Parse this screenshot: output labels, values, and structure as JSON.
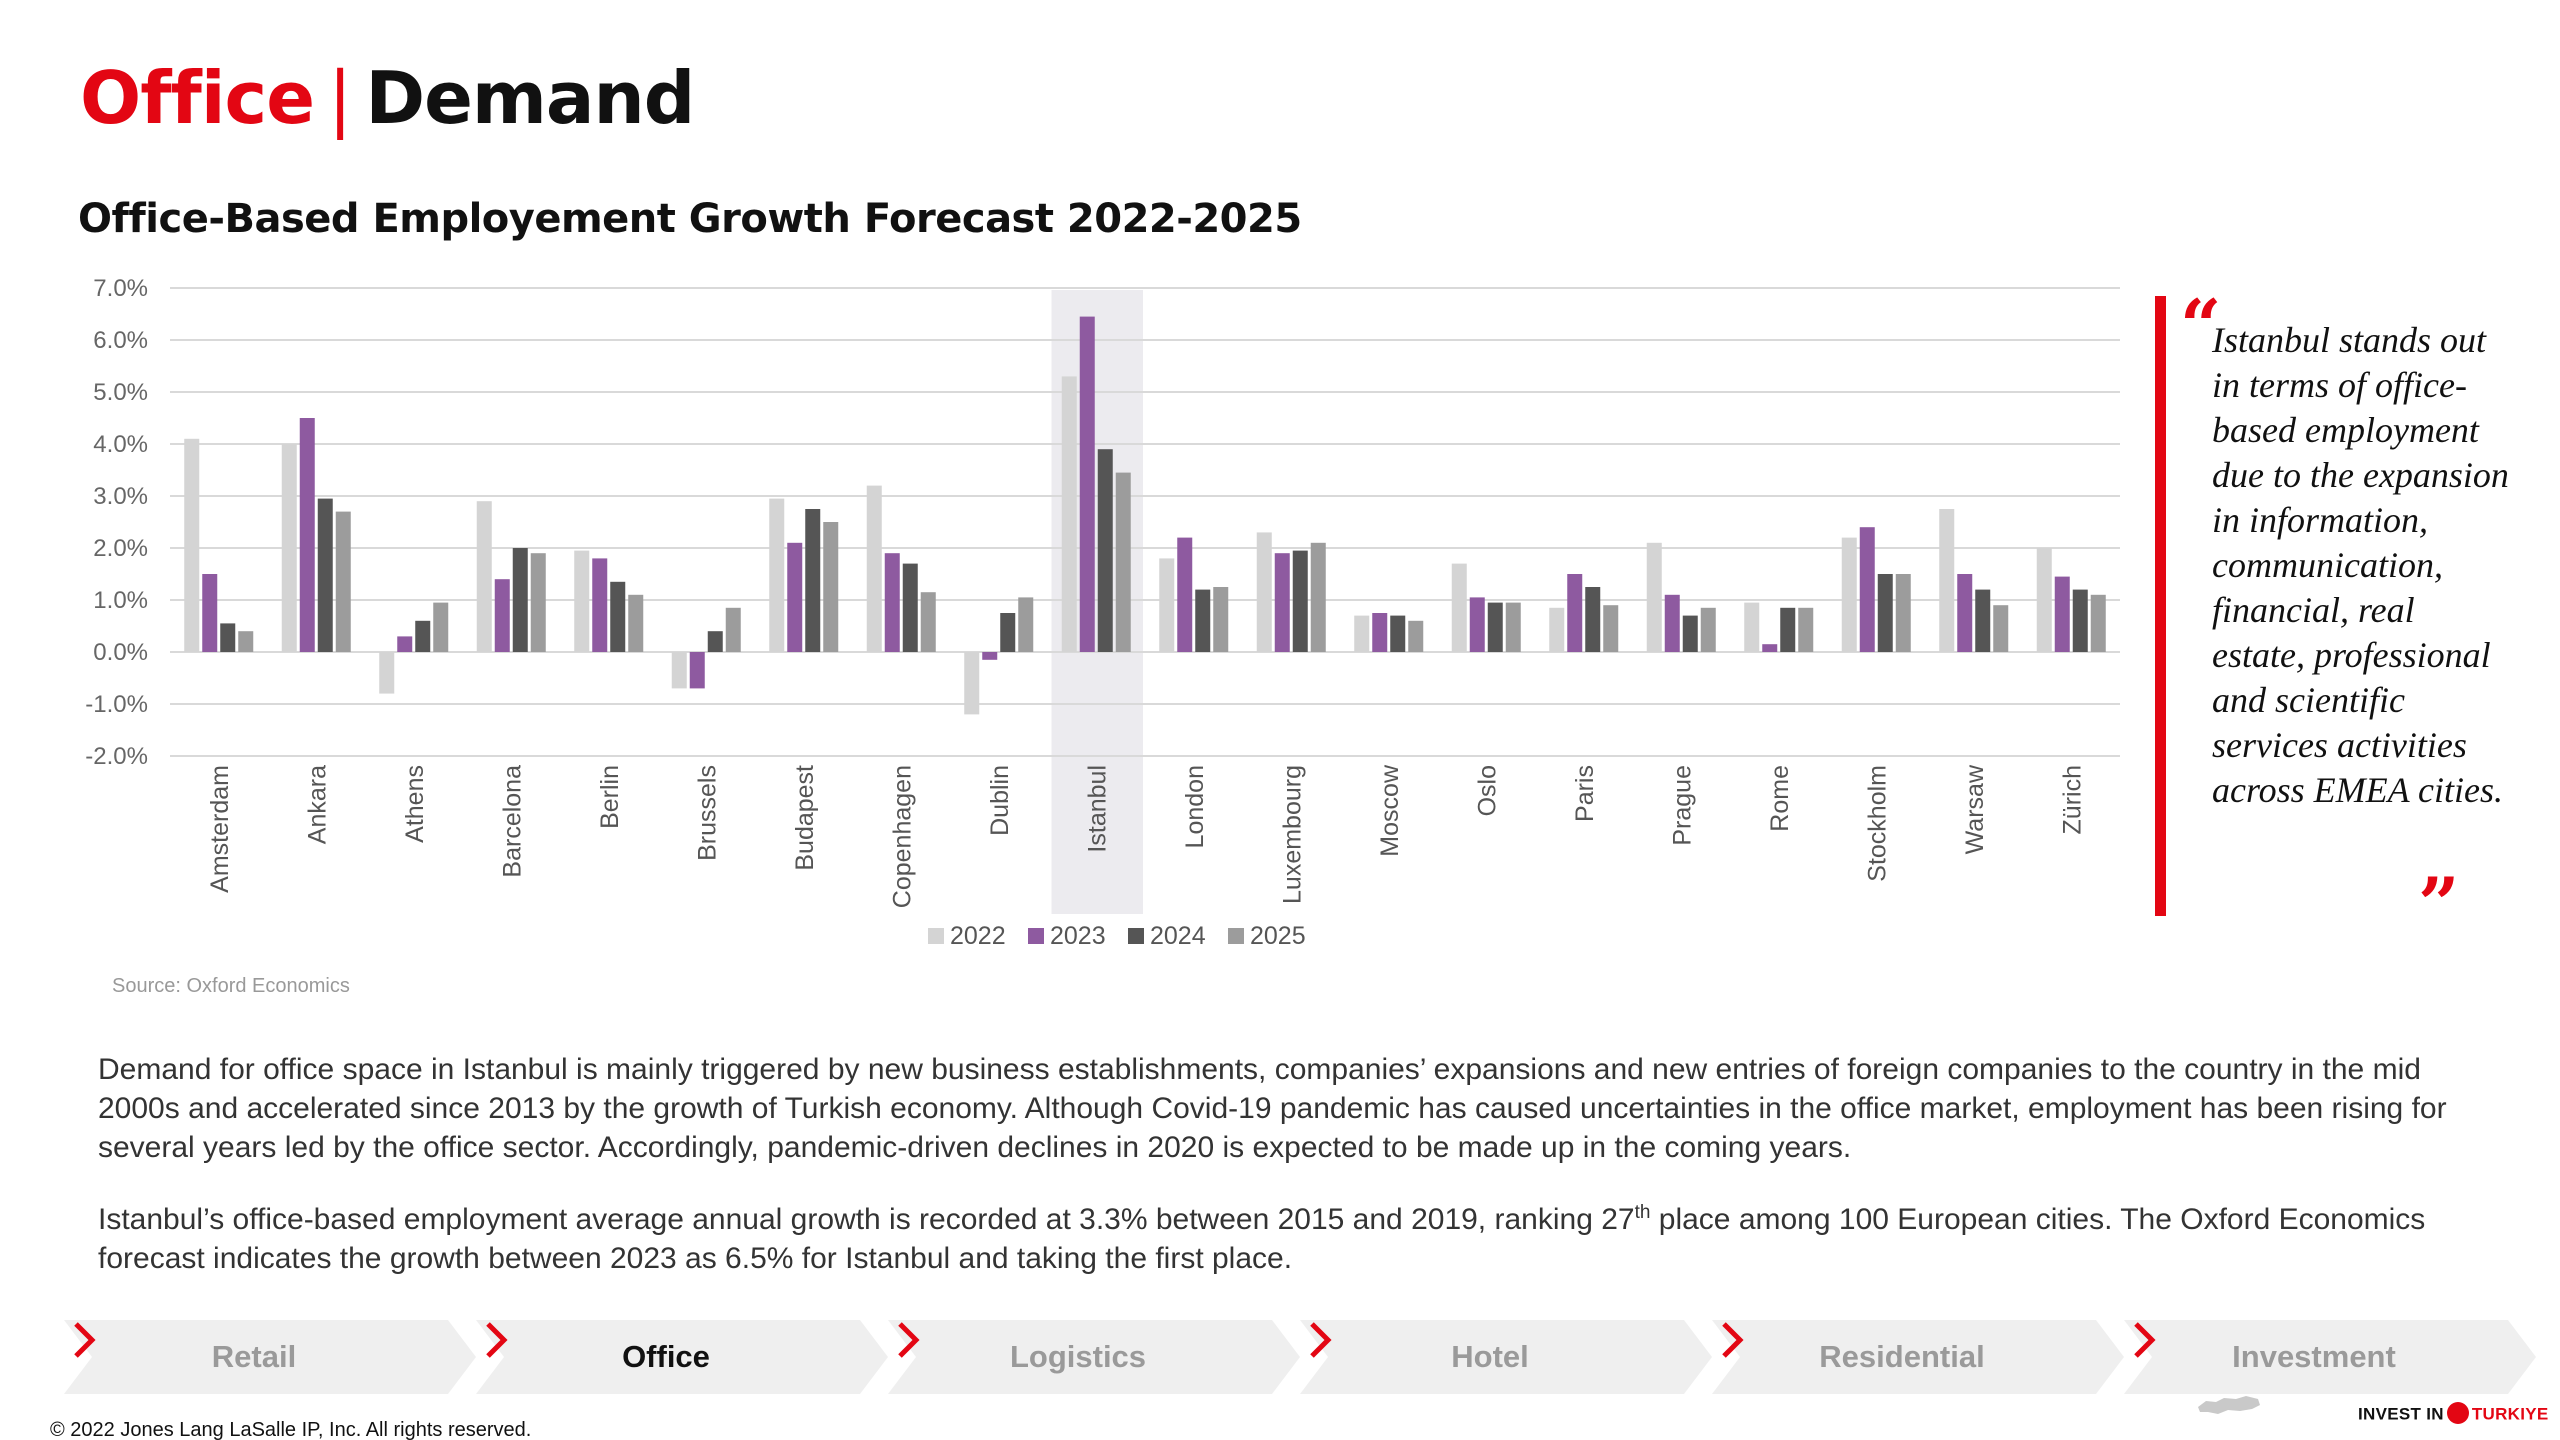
{
  "header": {
    "part1": "Office",
    "separator": "|",
    "part2": "Demand"
  },
  "chart_title": "Office-Based Employement Growth Forecast 2022-2025",
  "chart_data": {
    "type": "bar",
    "title": "Office-Based Employement Growth Forecast 2022-2025",
    "categories": [
      "Amsterdam",
      "Ankara",
      "Athens",
      "Barcelona",
      "Berlin",
      "Brussels",
      "Budapest",
      "Copenhagen",
      "Dublin",
      "Istanbul",
      "London",
      "Luxembourg",
      "Moscow",
      "Oslo",
      "Paris",
      "Prague",
      "Rome",
      "Stockholm",
      "Warsaw",
      "Zürich"
    ],
    "series": [
      {
        "name": "2022",
        "color": "#d4d4d4",
        "values": [
          4.1,
          4.0,
          -0.8,
          2.9,
          1.95,
          -0.7,
          2.95,
          3.2,
          -1.2,
          5.3,
          1.8,
          2.3,
          0.7,
          1.7,
          0.85,
          2.1,
          0.95,
          2.2,
          2.75,
          2.0
        ]
      },
      {
        "name": "2023",
        "color": "#8e5aa0",
        "values": [
          1.5,
          4.5,
          0.3,
          1.4,
          1.8,
          -0.7,
          2.1,
          1.9,
          -0.15,
          6.45,
          2.2,
          1.9,
          0.75,
          1.05,
          1.5,
          1.1,
          0.15,
          2.4,
          1.5,
          1.45
        ]
      },
      {
        "name": "2024",
        "color": "#555555",
        "values": [
          0.55,
          2.95,
          0.6,
          2.0,
          1.35,
          0.4,
          2.75,
          1.7,
          0.75,
          3.9,
          1.2,
          1.95,
          0.7,
          0.95,
          1.25,
          0.7,
          0.85,
          1.5,
          1.2,
          1.2
        ]
      },
      {
        "name": "2025",
        "color": "#9c9c9c",
        "values": [
          0.4,
          2.7,
          0.95,
          1.9,
          1.1,
          0.85,
          2.5,
          1.15,
          1.05,
          3.45,
          1.25,
          2.1,
          0.6,
          0.95,
          0.9,
          0.85,
          0.85,
          1.5,
          0.9,
          1.1
        ]
      }
    ],
    "y_ticks": [
      "7.0%",
      "6.0%",
      "5.0%",
      "4.0%",
      "3.0%",
      "2.0%",
      "1.0%",
      "0.0%",
      "-1.0%",
      "-2.0%"
    ],
    "ylim": [
      -2,
      7
    ],
    "highlight_category": "Istanbul",
    "legend_position": "bottom",
    "grid": true
  },
  "source": "Source: Oxford Economics",
  "quote": {
    "open_mark": "“",
    "close_mark": "”",
    "text": "Istanbul stands out in terms of office-based employment due to the expansion in information, communication, financial, real estate, professional and scientific services activities across EMEA cities."
  },
  "body": {
    "paragraph1": "Demand for office space in Istanbul is mainly triggered by new business establishments, companies’ expansions and new entries of foreign companies to the country in the mid 2000s and accelerated since 2013 by the growth of Turkish economy. Although Covid-19 pandemic has caused uncertainties in the office market, employment has been rising for several years led by the office sector. Accordingly, pandemic-driven declines in 2020 is expected to be made up in the coming years.",
    "paragraph2_before": "Istanbul’s office-based employment average annual growth is recorded at 3.3% between 2015 and 2019, ranking 27",
    "paragraph2_sup": "th",
    "paragraph2_after": " place among 100 European cities. The Oxford Economics forecast indicates the growth between 2023 as 6.5% for Istanbul and taking the first place."
  },
  "nav": {
    "items": [
      {
        "label": "Retail"
      },
      {
        "label": "Office"
      },
      {
        "label": "Logistics"
      },
      {
        "label": "Hotel"
      },
      {
        "label": "Residential"
      },
      {
        "label": "Investment"
      }
    ],
    "active": "Office"
  },
  "footer": {
    "copyright": "© 2022 Jones Lang LaSalle IP, Inc. All rights reserved.",
    "logo_part1": "INVEST IN",
    "logo_part2": "TURKIYE"
  },
  "colors": {
    "accent": "#e30613",
    "nav_bg": "#efefef",
    "highlight_bg": "#ecebef"
  }
}
